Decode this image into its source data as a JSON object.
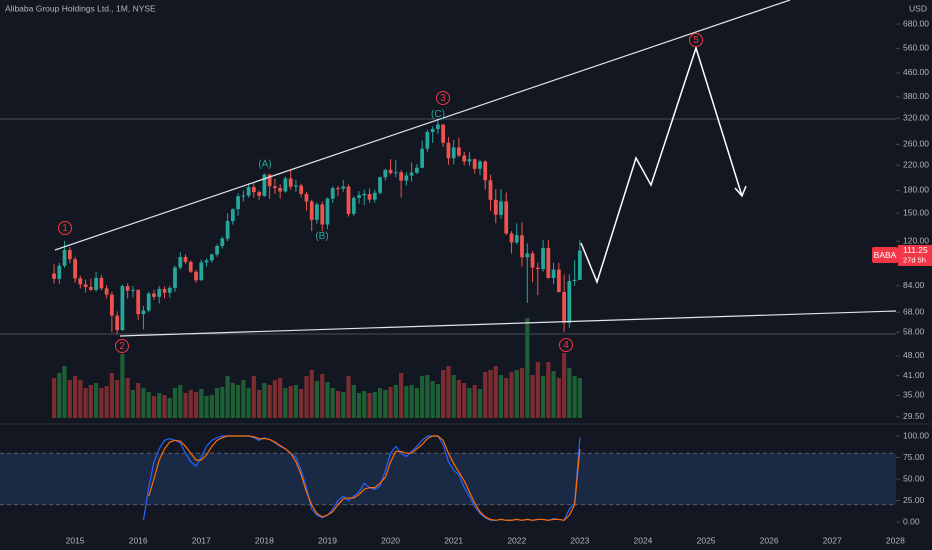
{
  "chart_data": {
    "type": "candlestick",
    "title": "Alibaba Group Holdings Ltd., 1M, NYSE",
    "currency": "USD",
    "symbol": "BABA",
    "countdown": "27d 5h",
    "log_scale": true,
    "up_color": "#26a69a",
    "down_color": "#ef5350",
    "xlim": [
      2013.81,
      2028.01
    ],
    "xticks": [
      2015,
      2016,
      2017,
      2018,
      2019,
      2020,
      2021,
      2022,
      2023,
      2024,
      2025,
      2026,
      2027,
      2028
    ],
    "ylim": [
      28.3,
      824
    ],
    "yticks": [
      {
        "value": 29.5,
        "label": "29.50"
      },
      {
        "value": 35,
        "label": "35.00"
      },
      {
        "value": 41,
        "label": "41.00"
      },
      {
        "value": 48,
        "label": "48.00"
      },
      {
        "value": 58,
        "label": "58.00"
      },
      {
        "value": 68,
        "label": "68.00"
      },
      {
        "value": 84,
        "label": "84.00"
      },
      {
        "value": 120,
        "label": "120.00"
      },
      {
        "value": 150,
        "label": "150.00"
      },
      {
        "value": 180,
        "label": "180.00"
      },
      {
        "value": 220,
        "label": "220.00"
      },
      {
        "value": 260,
        "label": "260.00"
      },
      {
        "value": 320,
        "label": "320.00"
      },
      {
        "value": 380,
        "label": "380.00"
      },
      {
        "value": 460,
        "label": "460.00"
      },
      {
        "value": 560,
        "label": "560.00"
      },
      {
        "value": 680,
        "label": "680.00"
      }
    ],
    "x": [
      2014.667,
      2014.75,
      2014.833,
      2014.917,
      2015,
      2015.083,
      2015.167,
      2015.25,
      2015.333,
      2015.417,
      2015.5,
      2015.583,
      2015.667,
      2015.75,
      2015.833,
      2015.917,
      2016,
      2016.083,
      2016.167,
      2016.25,
      2016.333,
      2016.417,
      2016.5,
      2016.583,
      2016.667,
      2016.75,
      2016.833,
      2016.917,
      2017,
      2017.083,
      2017.167,
      2017.25,
      2017.333,
      2017.417,
      2017.5,
      2017.583,
      2017.667,
      2017.75,
      2017.833,
      2017.917,
      2018,
      2018.083,
      2018.167,
      2018.25,
      2018.333,
      2018.417,
      2018.5,
      2018.583,
      2018.667,
      2018.75,
      2018.833,
      2018.917,
      2019,
      2019.083,
      2019.167,
      2019.25,
      2019.333,
      2019.417,
      2019.5,
      2019.583,
      2019.667,
      2019.75,
      2019.833,
      2019.917,
      2020,
      2020.083,
      2020.167,
      2020.25,
      2020.333,
      2020.417,
      2020.5,
      2020.583,
      2020.667,
      2020.75,
      2020.833,
      2020.917,
      2021,
      2021.083,
      2021.167,
      2021.25,
      2021.333,
      2021.417,
      2021.5,
      2021.583,
      2021.667,
      2021.75,
      2021.833,
      2021.917,
      2022,
      2022.083,
      2022.167,
      2022.25,
      2022.333,
      2022.417,
      2022.5,
      2022.583,
      2022.667,
      2022.75,
      2022.833,
      2022.917,
      2023
    ],
    "candles": [
      [
        92.7,
        99.7,
        85.6,
        88.8
      ],
      [
        88.8,
        100.9,
        85.3,
        98.6
      ],
      [
        98.6,
        120.0,
        97.0,
        111.8
      ],
      [
        111.8,
        114.5,
        100.6,
        103.9
      ],
      [
        103.9,
        106.0,
        86.0,
        89.1
      ],
      [
        89.1,
        91.0,
        82.2,
        85.0
      ],
      [
        85.0,
        88.2,
        79.5,
        83.2
      ],
      [
        83.2,
        89.0,
        80.5,
        81.3
      ],
      [
        81.3,
        94.0,
        80.0,
        89.5
      ],
      [
        89.5,
        91.7,
        81.0,
        82.3
      ],
      [
        82.3,
        84.5,
        76.0,
        78.3
      ],
      [
        78.3,
        80.0,
        58.0,
        66.2
      ],
      [
        66.2,
        68.5,
        57.2,
        59.0
      ],
      [
        59.0,
        85.0,
        58.5,
        83.8
      ],
      [
        83.8,
        85.7,
        76.0,
        80.8
      ],
      [
        80.8,
        84.0,
        76.5,
        81.3
      ],
      [
        81.3,
        81.8,
        64.0,
        67.0
      ],
      [
        67.0,
        71.5,
        59.3,
        69.0
      ],
      [
        69.0,
        80.0,
        68.0,
        79.0
      ],
      [
        79.0,
        81.5,
        75.0,
        76.9
      ],
      [
        76.9,
        84.0,
        73.0,
        81.9
      ],
      [
        81.9,
        83.5,
        76.0,
        79.5
      ],
      [
        79.5,
        84.0,
        76.5,
        82.6
      ],
      [
        82.6,
        98.5,
        80.0,
        97.2
      ],
      [
        97.2,
        109.9,
        95.5,
        105.8
      ],
      [
        105.8,
        107.8,
        100.0,
        101.7
      ],
      [
        101.7,
        103.0,
        93.0,
        94.0
      ],
      [
        94.0,
        95.5,
        86.0,
        87.8
      ],
      [
        87.8,
        103.5,
        87.5,
        101.3
      ],
      [
        101.3,
        104.5,
        98.0,
        102.9
      ],
      [
        102.9,
        109.0,
        101.0,
        107.8
      ],
      [
        107.8,
        117.0,
        106.0,
        115.5
      ],
      [
        115.5,
        124.5,
        113.0,
        122.5
      ],
      [
        122.5,
        150.0,
        120.0,
        140.9
      ],
      [
        140.9,
        156.0,
        137.0,
        154.9
      ],
      [
        154.9,
        176.0,
        147.0,
        171.8
      ],
      [
        171.8,
        180.0,
        165.0,
        172.7
      ],
      [
        172.7,
        191.0,
        170.0,
        184.9
      ],
      [
        184.9,
        191.7,
        170.0,
        177.5
      ],
      [
        177.5,
        179.5,
        167.0,
        172.4
      ],
      [
        172.4,
        206.2,
        171.0,
        204.3
      ],
      [
        204.3,
        205.0,
        168.0,
        186.1
      ],
      [
        186.1,
        197.5,
        175.0,
        183.5
      ],
      [
        183.5,
        189.0,
        169.0,
        178.5
      ],
      [
        178.5,
        201.0,
        177.0,
        198.0
      ],
      [
        198.0,
        211.7,
        181.0,
        185.5
      ],
      [
        185.5,
        196.0,
        178.0,
        187.2
      ],
      [
        187.2,
        190.0,
        170.0,
        175.0
      ],
      [
        175.0,
        178.0,
        153.0,
        164.8
      ],
      [
        164.8,
        167.0,
        130.0,
        142.3
      ],
      [
        142.3,
        163.5,
        138.0,
        160.9
      ],
      [
        160.9,
        165.0,
        129.8,
        137.1
      ],
      [
        137.1,
        170.0,
        132.0,
        168.5
      ],
      [
        168.5,
        186.0,
        163.0,
        183.2
      ],
      [
        183.2,
        186.5,
        172.0,
        182.5
      ],
      [
        182.5,
        195.7,
        178.0,
        185.6
      ],
      [
        185.6,
        188.5,
        146.0,
        149.3
      ],
      [
        149.3,
        172.0,
        147.0,
        169.5
      ],
      [
        169.5,
        179.0,
        162.0,
        173.1
      ],
      [
        173.1,
        181.0,
        160.0,
        175.0
      ],
      [
        175.0,
        183.0,
        163.0,
        167.2
      ],
      [
        167.2,
        181.0,
        163.5,
        176.7
      ],
      [
        176.7,
        201.0,
        174.0,
        200.0
      ],
      [
        200.0,
        214.0,
        195.0,
        212.1
      ],
      [
        212.1,
        231.1,
        204.0,
        206.6
      ],
      [
        206.6,
        230.0,
        200.0,
        208.0
      ],
      [
        208.0,
        212.0,
        169.9,
        194.5
      ],
      [
        194.5,
        208.0,
        187.0,
        202.7
      ],
      [
        202.7,
        225.0,
        193.0,
        207.4
      ],
      [
        207.4,
        222.0,
        205.0,
        215.7
      ],
      [
        215.7,
        268.0,
        215.0,
        251.0
      ],
      [
        251.0,
        292.0,
        245.0,
        287.0
      ],
      [
        287.0,
        300.5,
        263.0,
        294.0
      ],
      [
        294.0,
        319.3,
        282.0,
        304.7
      ],
      [
        304.7,
        305.0,
        255.0,
        263.4
      ],
      [
        263.4,
        276.0,
        221.0,
        232.7
      ],
      [
        232.7,
        270.0,
        222.0,
        253.8
      ],
      [
        253.8,
        274.3,
        235.0,
        237.8
      ],
      [
        237.8,
        245.0,
        220.0,
        226.7
      ],
      [
        226.7,
        244.0,
        219.0,
        231.0
      ],
      [
        231.0,
        232.0,
        206.0,
        213.9
      ],
      [
        213.9,
        230.0,
        203.0,
        226.8
      ],
      [
        226.8,
        229.0,
        181.0,
        195.2
      ],
      [
        195.2,
        204.0,
        152.8,
        167.0
      ],
      [
        167.0,
        182.0,
        138.4,
        148.1
      ],
      [
        148.1,
        182.0,
        143.0,
        164.9
      ],
      [
        164.9,
        177.0,
        126.0,
        127.6
      ],
      [
        127.6,
        130.0,
        108.7,
        118.8
      ],
      [
        118.8,
        138.5,
        117.0,
        125.8
      ],
      [
        125.8,
        139.5,
        98.0,
        105.5
      ],
      [
        105.5,
        118.0,
        73.3,
        108.8
      ],
      [
        108.8,
        111.0,
        86.5,
        97.1
      ],
      [
        97.1,
        101.0,
        78.0,
        96.0
      ],
      [
        96.0,
        121.0,
        94.0,
        113.7
      ],
      [
        113.7,
        121.0,
        89.0,
        89.4
      ],
      [
        89.4,
        101.0,
        85.0,
        95.6
      ],
      [
        95.6,
        101.0,
        79.5,
        80.0
      ],
      [
        80.0,
        92.0,
        58.0,
        62.5
      ],
      [
        62.5,
        92.0,
        60.0,
        87.3
      ],
      [
        87.3,
        103.0,
        84.0,
        88.1
      ],
      [
        88.1,
        121.0,
        88.0,
        111.25
      ]
    ],
    "volume": {
      "up_color": "#1f5f36",
      "down_color": "#7a2c30",
      "values": [
        400,
        450,
        520,
        380,
        420,
        380,
        300,
        330,
        350,
        300,
        320,
        450,
        380,
        640,
        400,
        280,
        350,
        300,
        260,
        220,
        250,
        230,
        200,
        300,
        330,
        250,
        280,
        260,
        290,
        220,
        230,
        300,
        310,
        420,
        350,
        330,
        380,
        300,
        420,
        280,
        350,
        330,
        380,
        400,
        300,
        320,
        330,
        290,
        420,
        480,
        370,
        440,
        360,
        300,
        270,
        260,
        420,
        330,
        250,
        270,
        250,
        260,
        300,
        280,
        310,
        330,
        450,
        320,
        330,
        300,
        420,
        430,
        370,
        340,
        480,
        520,
        430,
        380,
        350,
        300,
        330,
        290,
        460,
        480,
        520,
        430,
        400,
        460,
        480,
        500,
        1000,
        430,
        560,
        420,
        560,
        470,
        400,
        650,
        500,
        420,
        400
      ]
    },
    "stochastic": {
      "ylim": [
        -9.3,
        112.8
      ],
      "yticks": [
        {
          "value": 0,
          "label": "0.00"
        },
        {
          "value": 25,
          "label": "25.00"
        },
        {
          "value": 50,
          "label": "50.00"
        },
        {
          "value": 75,
          "label": "75.00"
        },
        {
          "value": 100,
          "label": "100.00"
        }
      ],
      "bands": [
        20,
        80
      ],
      "series": [
        {
          "color": "#2962ff",
          "values": [
            null,
            null,
            null,
            null,
            null,
            null,
            null,
            null,
            null,
            null,
            null,
            null,
            null,
            null,
            null,
            null,
            null,
            2,
            40,
            70,
            85,
            95,
            97,
            95,
            92,
            80,
            70,
            65,
            75,
            88,
            95,
            98,
            100,
            100,
            100,
            100,
            100,
            100,
            98,
            95,
            98,
            96,
            92,
            88,
            85,
            80,
            75,
            60,
            40,
            15,
            8,
            5,
            8,
            15,
            25,
            30,
            25,
            30,
            35,
            45,
            40,
            38,
            42,
            60,
            80,
            88,
            80,
            76,
            82,
            88,
            95,
            100,
            100,
            100,
            90,
            70,
            60,
            55,
            40,
            30,
            18,
            10,
            5,
            2,
            2,
            3,
            2,
            2,
            3,
            2,
            3,
            2,
            3,
            3,
            2,
            4,
            3,
            2,
            15,
            22,
            98
          ]
        },
        {
          "color": "#ff6d00",
          "values": [
            null,
            null,
            null,
            null,
            null,
            null,
            null,
            null,
            null,
            null,
            null,
            null,
            null,
            null,
            null,
            null,
            null,
            null,
            30,
            50,
            72,
            85,
            93,
            95,
            94,
            88,
            80,
            72,
            72,
            78,
            88,
            95,
            98,
            100,
            100,
            100,
            100,
            100,
            99,
            97,
            97,
            96,
            93,
            89,
            85,
            80,
            70,
            55,
            35,
            20,
            10,
            6,
            8,
            12,
            20,
            27,
            28,
            28,
            32,
            38,
            40,
            40,
            45,
            52,
            70,
            82,
            82,
            80,
            80,
            85,
            90,
            97,
            100,
            100,
            95,
            80,
            68,
            58,
            48,
            35,
            22,
            12,
            6,
            3,
            2,
            3,
            2,
            2,
            3,
            2,
            3,
            2,
            3,
            3,
            2,
            3,
            3,
            2,
            8,
            20,
            85
          ]
        }
      ]
    },
    "annotations": [
      {
        "text": "1",
        "color": "#f23645"
      },
      {
        "text": "2",
        "color": "#f23645"
      },
      {
        "text": "3",
        "color": "#f23645"
      },
      {
        "text": "4",
        "color": "#f23645"
      },
      {
        "text": "5",
        "color": "#f23645"
      },
      {
        "text": "(A)",
        "color": "#26a69a"
      },
      {
        "text": "(B)",
        "color": "#26a69a"
      },
      {
        "text": "(C)",
        "color": "#26a69a"
      }
    ]
  }
}
